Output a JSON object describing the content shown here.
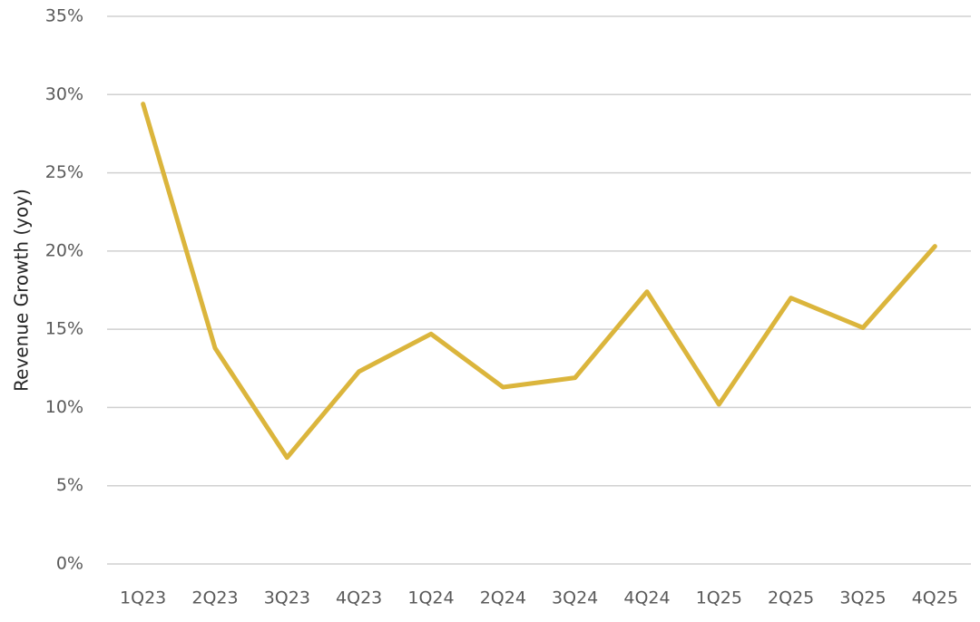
{
  "chart_data": {
    "type": "line",
    "y_label": "Revenue Growth (yoy)",
    "categories": [
      "1Q23",
      "2Q23",
      "3Q23",
      "4Q23",
      "1Q24",
      "2Q24",
      "3Q24",
      "4Q24",
      "1Q25",
      "2Q25",
      "3Q25",
      "4Q25"
    ],
    "series": [
      {
        "color": "#dbb53c",
        "values": [
          29.4,
          13.8,
          6.8,
          12.3,
          14.7,
          11.3,
          11.9,
          17.4,
          10.2,
          17.0,
          15.1,
          20.3
        ]
      }
    ],
    "ylim": [
      0,
      35
    ],
    "yticks": [
      {
        "value": 0,
        "label": "0%"
      },
      {
        "value": 5,
        "label": "5%"
      },
      {
        "value": 10,
        "label": "10%"
      },
      {
        "value": 15,
        "label": "15%"
      },
      {
        "value": 20,
        "label": "20%"
      },
      {
        "value": 25,
        "label": "25%"
      },
      {
        "value": 30,
        "label": "30%"
      },
      {
        "value": 35,
        "label": "35%"
      }
    ],
    "grid": true
  }
}
